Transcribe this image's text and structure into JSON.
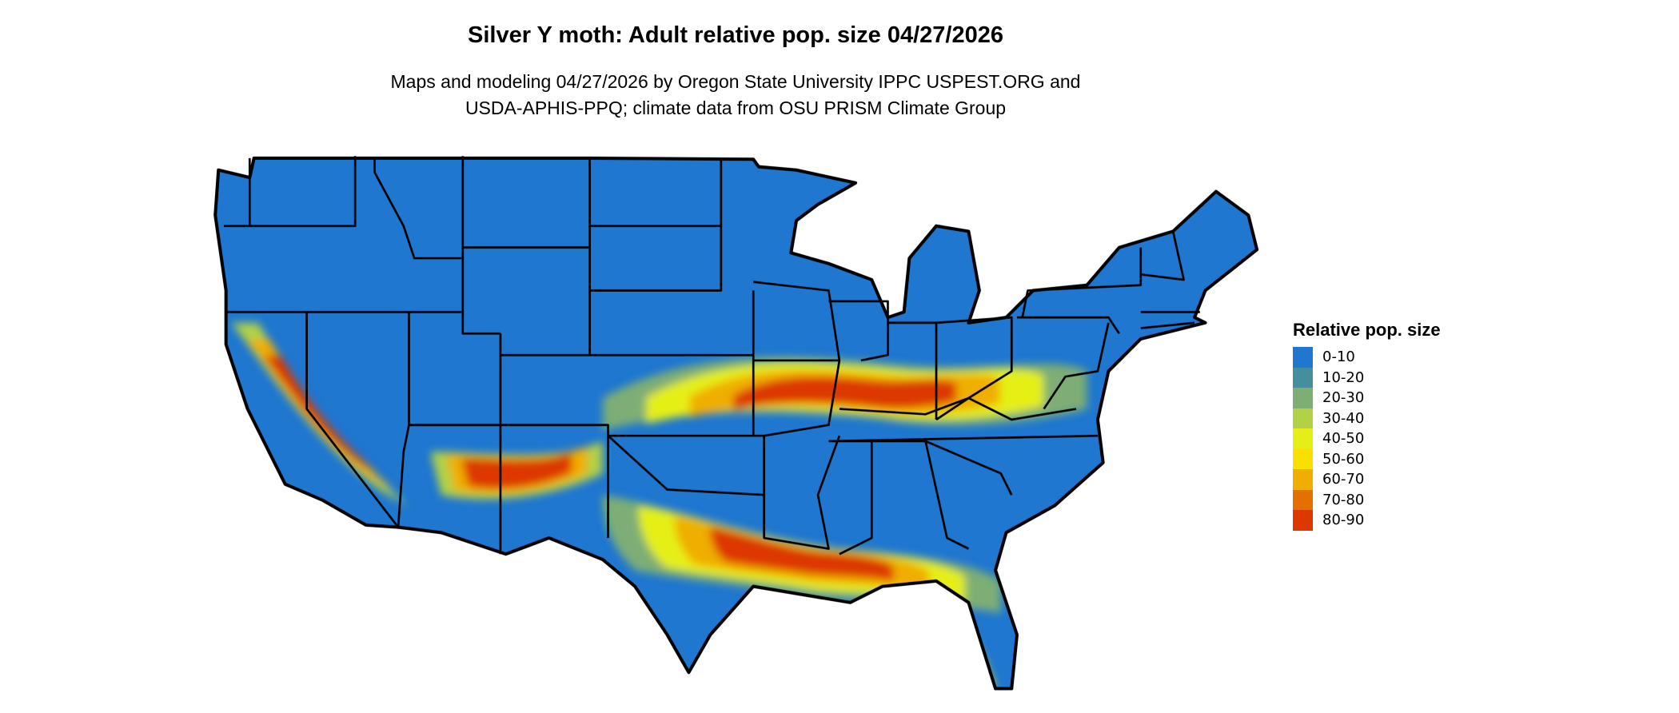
{
  "title": "Silver Y moth: Adult relative pop. size 04/27/2026",
  "subtitle_line1": "Maps and modeling 04/27/2026 by Oregon State University IPPC USPEST.ORG and",
  "subtitle_line2": "USDA-APHIS-PPQ; climate data from OSU PRISM Climate Group",
  "legend": {
    "title": "Relative pop. size",
    "items": [
      {
        "label": "0-10",
        "color": "#1f77d0"
      },
      {
        "label": "10-20",
        "color": "#468e9e"
      },
      {
        "label": "20-30",
        "color": "#7eae74"
      },
      {
        "label": "30-40",
        "color": "#b2d147"
      },
      {
        "label": "40-50",
        "color": "#e5ef17"
      },
      {
        "label": "50-60",
        "color": "#f9e000"
      },
      {
        "label": "60-70",
        "color": "#f0ae00"
      },
      {
        "label": "70-80",
        "color": "#e47000"
      },
      {
        "label": "80-90",
        "color": "#dc3800"
      }
    ]
  },
  "chart_data": {
    "type": "heatmap",
    "title": "Silver Y moth: Adult relative pop. size 04/27/2026",
    "region": "Contiguous United States",
    "legend_placement": "right",
    "classes": [
      "0-10",
      "10-20",
      "20-30",
      "30-40",
      "40-50",
      "50-60",
      "60-70",
      "70-80",
      "80-90"
    ]
  }
}
